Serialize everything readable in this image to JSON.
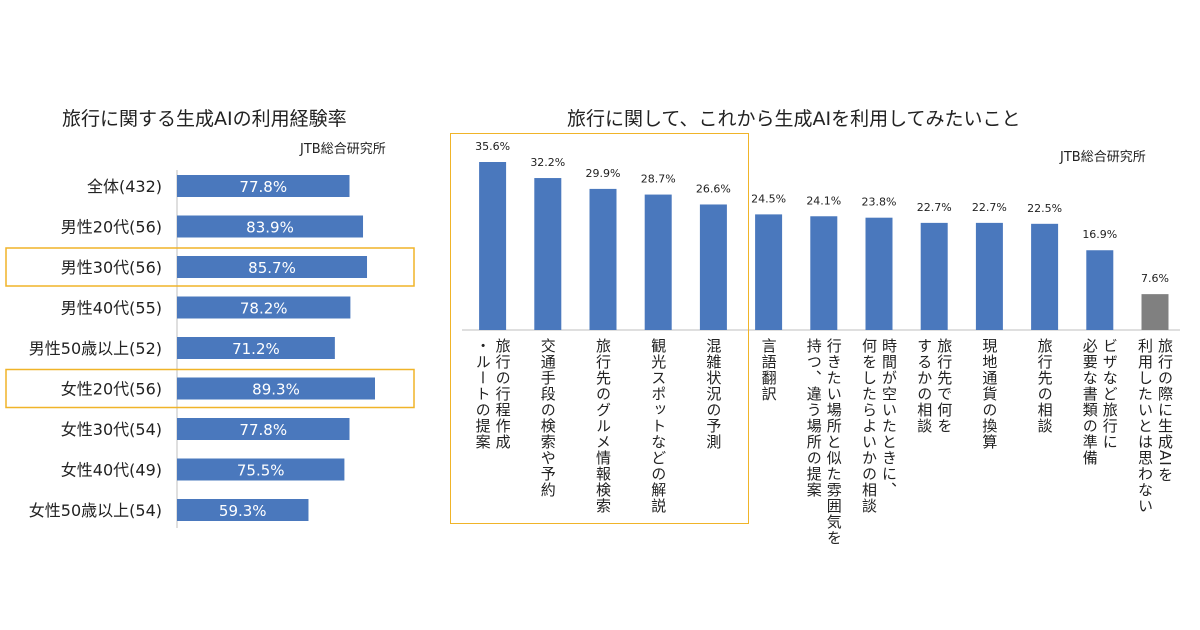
{
  "left": {
    "title": "旅行に関する生成AIの利用経験率",
    "source": "JTB総合研究所",
    "chart_data": {
      "type": "bar",
      "orientation": "horizontal",
      "title": "旅行に関する生成AIの利用経験率",
      "categories": [
        "全体(432)",
        "男性20代(56)",
        "男性30代(56)",
        "男性40代(55)",
        "男性50歳以上(52)",
        "女性20代(56)",
        "女性30代(54)",
        "女性40代(49)",
        "女性50歳以上(54)"
      ],
      "values": [
        77.8,
        83.9,
        85.7,
        78.2,
        71.2,
        89.3,
        77.8,
        75.5,
        59.3
      ],
      "data_labels": [
        "77.8%",
        "83.9%",
        "85.7%",
        "78.2%",
        "71.2%",
        "89.3%",
        "77.8%",
        "75.5%",
        "59.3%"
      ],
      "highlighted": [
        "男性30代(56)",
        "女性20代(56)"
      ],
      "bar_color": "#4a78bd",
      "highlight_color": "#f0b429",
      "xlim": [
        0,
        100
      ],
      "grid": false
    }
  },
  "right": {
    "title": "旅行に関して、これから生成AIを利用してみたいこと",
    "source": "JTB総合研究所",
    "chart_data": {
      "type": "bar",
      "orientation": "vertical",
      "title": "旅行に関して、これから生成AIを利用してみたいこと",
      "categories": [
        "旅行の行程作成\n・ルートの提案",
        "交通手段の検索や予約",
        "旅行先のグルメ情報検索",
        "観光スポットなどの解説",
        "混雑状況の予測",
        "言語翻訳",
        "行きたい場所と似た雰囲気を\n持つ、違う場所の提案",
        "時間が空いたときに、\n何をしたらよいかの相談",
        "旅行先で何を\nするかの相談",
        "現地通貨の換算",
        "旅行先の相談",
        "ビザなど旅行に\n必要な書類の準備",
        "旅行の際に生成AIを\n利用したいとは思わない"
      ],
      "values": [
        35.6,
        32.2,
        29.9,
        28.7,
        26.6,
        24.5,
        24.1,
        23.8,
        22.7,
        22.7,
        22.5,
        16.9,
        7.6
      ],
      "data_labels": [
        "35.6%",
        "32.2%",
        "29.9%",
        "28.7%",
        "26.6%",
        "24.5%",
        "24.1%",
        "23.8%",
        "22.7%",
        "22.7%",
        "22.5%",
        "16.9%",
        "7.6%"
      ],
      "highlighted": [
        "旅行の行程作成\n・ルートの提案",
        "交通手段の検索や予約",
        "旅行先のグルメ情報検索",
        "観光スポットなどの解説",
        "混雑状況の予測"
      ],
      "bar_colors": [
        "#4a78bd",
        "#4a78bd",
        "#4a78bd",
        "#4a78bd",
        "#4a78bd",
        "#4a78bd",
        "#4a78bd",
        "#4a78bd",
        "#4a78bd",
        "#4a78bd",
        "#4a78bd",
        "#4a78bd",
        "#808080"
      ],
      "highlight_color": "#f0b429",
      "ylim": [
        0,
        40
      ],
      "grid": false
    }
  }
}
